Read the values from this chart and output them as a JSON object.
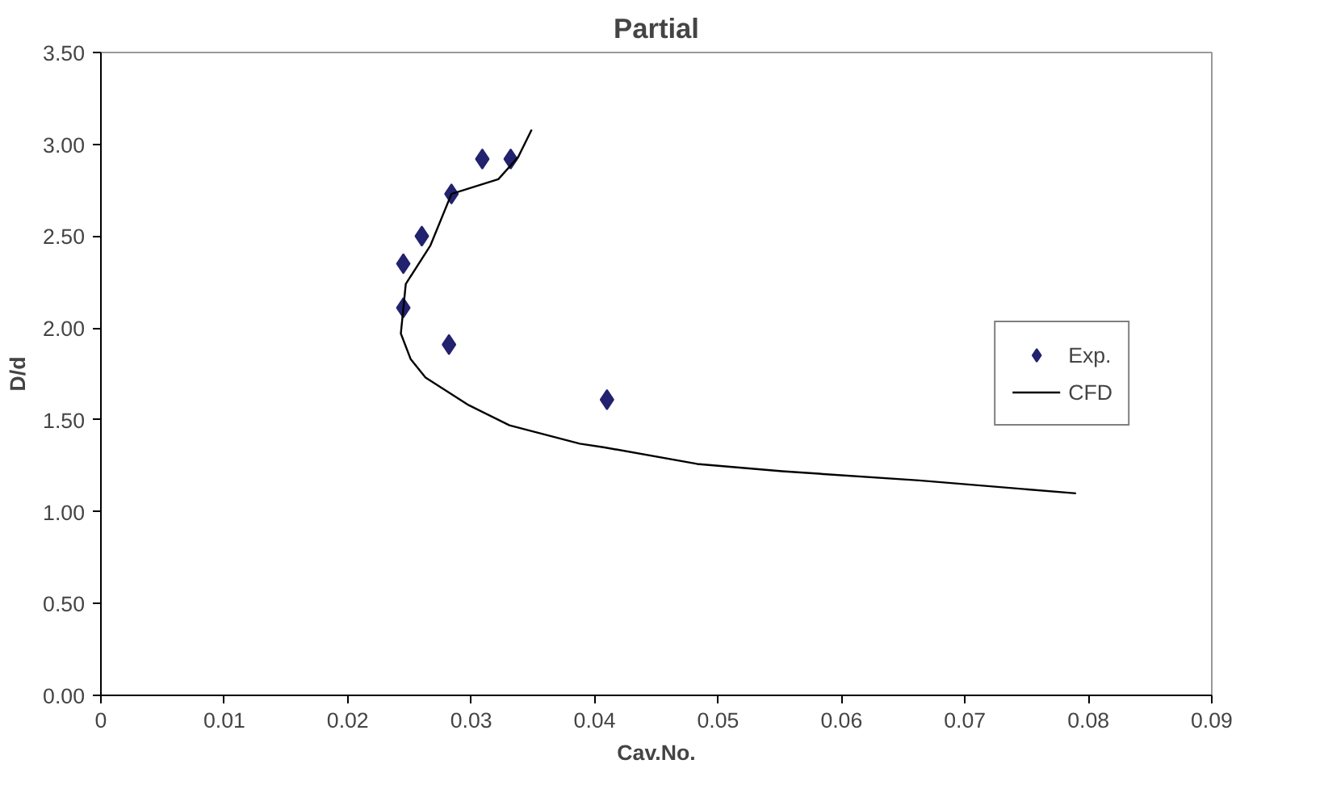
{
  "chart_data": {
    "type": "scatter",
    "title": "Partial",
    "xlabel": "Cav.No.",
    "ylabel": "D/d",
    "xlim": [
      0,
      0.09
    ],
    "xticks": [
      0,
      0.01,
      0.02,
      0.03,
      0.04,
      0.05,
      0.06,
      0.07,
      0.08,
      0.09
    ],
    "ylim": [
      0,
      3.5
    ],
    "yticks": [
      {
        "value": 0,
        "label": "0.00"
      },
      {
        "value": 0.5,
        "label": "0.50"
      },
      {
        "value": 1,
        "label": "1.00"
      },
      {
        "value": 1.5,
        "label": "1.50"
      },
      {
        "value": 2,
        "label": "2.00"
      },
      {
        "value": 2.5,
        "label": "2.50"
      },
      {
        "value": 3,
        "label": "3.00"
      },
      {
        "value": 3.5,
        "label": "3.50"
      }
    ],
    "grid": false,
    "legend": "right",
    "series": [
      {
        "name": "Exp.",
        "marker": "diamond",
        "color": "#22226e",
        "x": [
          0.0309,
          0.0332,
          0.0284,
          0.026,
          0.0245,
          0.0245,
          0.0282,
          0.041
        ],
        "values": [
          2.92,
          2.92,
          2.73,
          2.5,
          2.35,
          2.11,
          1.91,
          1.61
        ]
      },
      {
        "name": "CFD",
        "type": "line",
        "marker": "none",
        "line_style": "solid",
        "color": "#000000",
        "x": [
          0.0349,
          0.0338,
          0.0322,
          0.0284,
          0.0267,
          0.0247,
          0.0243,
          0.0251,
          0.0263,
          0.0298,
          0.0331,
          0.0388,
          0.0408,
          0.0483,
          0.0552,
          0.0663,
          0.079
        ],
        "values": [
          3.08,
          2.93,
          2.81,
          2.73,
          2.45,
          2.24,
          1.97,
          1.83,
          1.73,
          1.58,
          1.47,
          1.37,
          1.35,
          1.26,
          1.22,
          1.17,
          1.1
        ]
      }
    ]
  }
}
